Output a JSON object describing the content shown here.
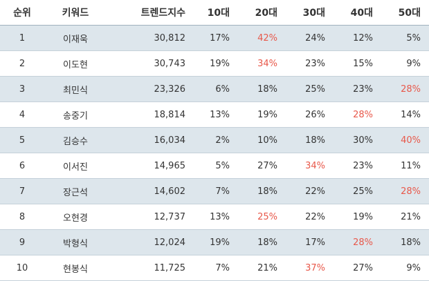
{
  "accent_color": "#e8584a",
  "row_stripe_color": "#dde6ec",
  "table": {
    "headers": [
      "순위",
      "키워드",
      "트렌드지수",
      "10대",
      "20대",
      "30대",
      "40대",
      "50대"
    ],
    "rows": [
      {
        "rank": "1",
        "keyword": "이재욱",
        "index": "30,812",
        "a10": "17%",
        "a20": "42%",
        "a30": "24%",
        "a40": "12%",
        "a50": "5%",
        "highlight": "a20"
      },
      {
        "rank": "2",
        "keyword": "이도현",
        "index": "30,743",
        "a10": "19%",
        "a20": "34%",
        "a30": "23%",
        "a40": "15%",
        "a50": "9%",
        "highlight": "a20"
      },
      {
        "rank": "3",
        "keyword": "최민식",
        "index": "23,326",
        "a10": "6%",
        "a20": "18%",
        "a30": "25%",
        "a40": "23%",
        "a50": "28%",
        "highlight": "a50"
      },
      {
        "rank": "4",
        "keyword": "송중기",
        "index": "18,814",
        "a10": "13%",
        "a20": "19%",
        "a30": "26%",
        "a40": "28%",
        "a50": "14%",
        "highlight": "a40"
      },
      {
        "rank": "5",
        "keyword": "김승수",
        "index": "16,034",
        "a10": "2%",
        "a20": "10%",
        "a30": "18%",
        "a40": "30%",
        "a50": "40%",
        "highlight": "a50"
      },
      {
        "rank": "6",
        "keyword": "이서진",
        "index": "14,965",
        "a10": "5%",
        "a20": "27%",
        "a30": "34%",
        "a40": "23%",
        "a50": "11%",
        "highlight": "a30"
      },
      {
        "rank": "7",
        "keyword": "장근석",
        "index": "14,602",
        "a10": "7%",
        "a20": "18%",
        "a30": "22%",
        "a40": "25%",
        "a50": "28%",
        "highlight": "a50"
      },
      {
        "rank": "8",
        "keyword": "오현경",
        "index": "12,737",
        "a10": "13%",
        "a20": "25%",
        "a30": "22%",
        "a40": "19%",
        "a50": "21%",
        "highlight": "a20"
      },
      {
        "rank": "9",
        "keyword": "박형식",
        "index": "12,024",
        "a10": "19%",
        "a20": "18%",
        "a30": "17%",
        "a40": "28%",
        "a50": "18%",
        "highlight": "a40"
      },
      {
        "rank": "10",
        "keyword": "현봉식",
        "index": "11,725",
        "a10": "7%",
        "a20": "21%",
        "a30": "37%",
        "a40": "27%",
        "a50": "9%",
        "highlight": "a30"
      }
    ]
  }
}
